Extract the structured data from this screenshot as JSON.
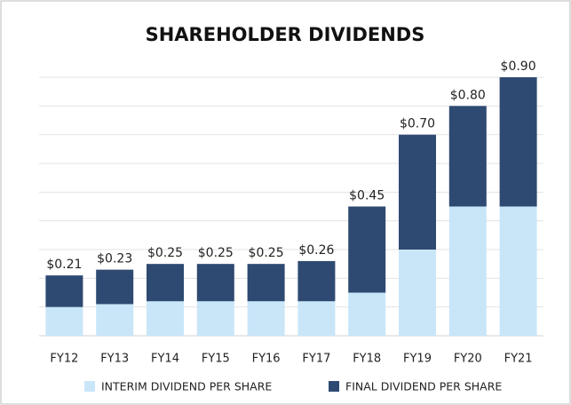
{
  "chart_data": {
    "type": "stacked_bar",
    "title": "SHAREHOLDER DIVIDENDS",
    "categories": [
      "FY12",
      "FY13",
      "FY14",
      "FY15",
      "FY16",
      "FY17",
      "FY18",
      "FY19",
      "FY20",
      "FY21"
    ],
    "series": [
      {
        "name": "INTERIM DIVIDEND PER SHARE",
        "color": "#c9e6f8",
        "values": [
          0.1,
          0.11,
          0.12,
          0.12,
          0.12,
          0.12,
          0.15,
          0.3,
          0.45,
          0.45
        ]
      },
      {
        "name": "FINAL DIVIDEND PER SHARE",
        "color": "#2e4a72",
        "values": [
          0.11,
          0.12,
          0.13,
          0.13,
          0.13,
          0.14,
          0.3,
          0.4,
          0.35,
          0.45
        ]
      }
    ],
    "total_labels": [
      "$0.21",
      "$0.23",
      "$0.25",
      "$0.25",
      "$0.25",
      "$0.26",
      "$0.45",
      "$0.70",
      "$0.80",
      "$0.90"
    ],
    "ylim": [
      0,
      0.9
    ],
    "yticks": [
      0.1,
      0.2,
      0.3,
      0.4,
      0.5,
      0.6,
      0.7,
      0.8,
      0.9
    ],
    "grid": true,
    "legend": "bottom"
  }
}
